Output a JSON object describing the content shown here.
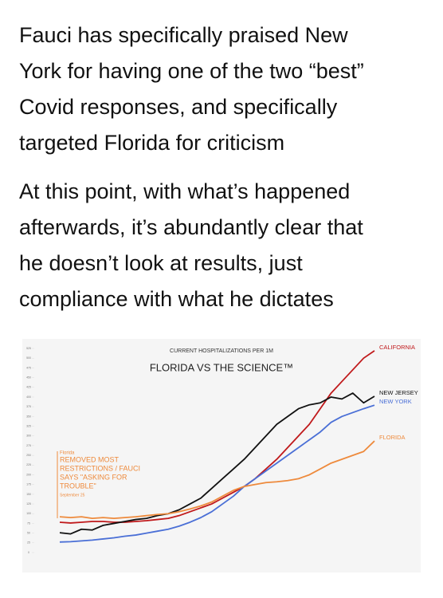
{
  "tweet": {
    "paragraphs": [
      [
        "Fauci has specifically praised New",
        "York for having one of the two “best”",
        "Covid responses, and specifically",
        "targeted Florida for criticism"
      ],
      [
        "At this point, with what’s happened",
        "afterwards, it’s abundantly clear that",
        "he doesn’t look at results, just",
        "compliance with what he dictates"
      ]
    ]
  },
  "chart_data": {
    "type": "line",
    "subtitle": "CURRENT HOSPITALIZATIONS PER 1M",
    "title": "FLORIDA VS THE SCIENCE™",
    "annotation": [
      "Florida",
      "REMOVED MOST",
      "RESTRICTIONS / FAUCI",
      "SAYS \"ASKING FOR",
      "TROUBLE\"",
      "September 25"
    ],
    "categories": [
      null,
      null,
      null,
      null,
      null,
      null,
      null,
      null,
      null,
      null,
      null,
      null,
      null,
      null,
      null,
      null,
      null,
      null,
      null,
      null,
      null,
      null,
      null,
      null,
      null,
      null,
      null,
      null,
      null,
      null
    ],
    "ylim": [
      0,
      525
    ],
    "yticks": [
      0,
      25,
      50,
      75,
      100,
      125,
      150,
      175,
      200,
      225,
      250,
      275,
      300,
      325,
      350,
      375,
      400,
      425,
      450,
      475,
      500,
      525
    ],
    "series": [
      {
        "name": "CALIFORNIA",
        "color": "#c0191b",
        "values": [
          78,
          76,
          78,
          80,
          80,
          78,
          78,
          80,
          82,
          85,
          88,
          95,
          105,
          115,
          125,
          140,
          155,
          170,
          190,
          215,
          240,
          270,
          300,
          330,
          370,
          410,
          440,
          470,
          500,
          519
        ]
      },
      {
        "name": "NEW JERSEY",
        "color": "#111111",
        "values": [
          51,
          48,
          60,
          58,
          70,
          75,
          80,
          85,
          88,
          95,
          100,
          110,
          125,
          140,
          165,
          190,
          215,
          240,
          270,
          300,
          330,
          350,
          370,
          380,
          385,
          400,
          395,
          410,
          385,
          402
        ]
      },
      {
        "name": "NEW YORK",
        "color": "#4a6fd6",
        "values": [
          27,
          28,
          30,
          32,
          35,
          38,
          42,
          45,
          50,
          55,
          60,
          68,
          78,
          90,
          105,
          125,
          145,
          170,
          190,
          210,
          230,
          250,
          270,
          290,
          310,
          335,
          350,
          360,
          370,
          379
        ]
      },
      {
        "name": "FLORIDA",
        "color": "#ee8a3c",
        "values": [
          92,
          90,
          92,
          88,
          90,
          88,
          90,
          92,
          95,
          98,
          100,
          105,
          112,
          120,
          130,
          145,
          160,
          170,
          175,
          180,
          182,
          185,
          190,
          200,
          215,
          230,
          240,
          250,
          260,
          287
        ]
      }
    ]
  }
}
